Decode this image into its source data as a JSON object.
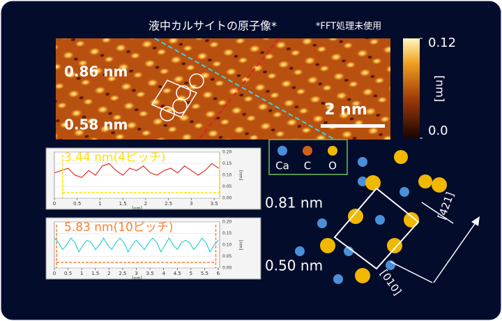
{
  "title": "液中カルサイトの原子像*",
  "note": "*FFT処理未使用",
  "image": {
    "labels": [
      "0.86 nm",
      "0.58 nm"
    ],
    "scale_bar": "2 nm",
    "colorbar": {
      "ylim": [
        0,
        0.12
      ],
      "yticks": [
        0.12,
        {
          "value": 0,
          "label": "0.0"
        }
      ],
      "unit": "[nm]"
    }
  },
  "profiles": [
    {
      "label": "3.44 nm(4ピッチ)",
      "label_color": "#ffe000",
      "color": "#e03030",
      "span_color": "#ffe000",
      "xlim": [
        0,
        3.62
      ],
      "ylim": [
        0,
        0.2
      ],
      "xticks": [
        0,
        0.5,
        1,
        1.5,
        2,
        2.5,
        3,
        3.5
      ],
      "yticks": [
        {
          "value": 0.2,
          "label": "0.20"
        },
        0.15,
        {
          "value": 0.1,
          "label": "0.10"
        },
        0.05,
        {
          "value": 0,
          "label": "0.00"
        }
      ],
      "xlabel": "[nm]",
      "ylabel": "[nm]",
      "span": [
        0.18,
        3.62
      ],
      "x": [
        0,
        0.15,
        0.3,
        0.45,
        0.6,
        0.75,
        0.9,
        1.05,
        1.2,
        1.35,
        1.5,
        1.65,
        1.8,
        1.95,
        2.1,
        2.25,
        2.4,
        2.55,
        2.7,
        2.85,
        3.0,
        3.15,
        3.3,
        3.45,
        3.6
      ],
      "values": [
        0.11,
        0.12,
        0.13,
        0.1,
        0.09,
        0.12,
        0.1,
        0.14,
        0.15,
        0.12,
        0.1,
        0.13,
        0.12,
        0.14,
        0.11,
        0.1,
        0.12,
        0.13,
        0.11,
        0.14,
        0.12,
        0.1,
        0.12,
        0.15,
        0.13
      ]
    },
    {
      "label": "5.83 nm(10ピッチ)",
      "label_color": "#ff8030",
      "color": "#30d0d0",
      "span_color": "#ff8030",
      "xlim": [
        0,
        6.05
      ],
      "ylim": [
        0,
        0.2
      ],
      "xticks": [
        0,
        0.5,
        1,
        1.5,
        2,
        2.5,
        3,
        3.5,
        4,
        4.5,
        5,
        5.5,
        6
      ],
      "yticks": [
        {
          "value": 0.2,
          "label": "0.20"
        },
        0.15,
        {
          "value": 0.1,
          "label": "0.10"
        },
        0.05,
        {
          "value": 0,
          "label": "0.00"
        }
      ],
      "xlabel": "[nm]",
      "ylabel": "[nm]",
      "span": [
        0.08,
        5.91
      ],
      "x": [
        0,
        0.15,
        0.3,
        0.45,
        0.6,
        0.75,
        0.9,
        1.05,
        1.2,
        1.35,
        1.5,
        1.65,
        1.8,
        1.95,
        2.1,
        2.25,
        2.4,
        2.55,
        2.7,
        2.85,
        3.0,
        3.15,
        3.3,
        3.45,
        3.6,
        3.75,
        3.9,
        4.05,
        4.2,
        4.35,
        4.5,
        4.65,
        4.8,
        4.95,
        5.1,
        5.25,
        5.4,
        5.55,
        5.7,
        5.85,
        6.0
      ],
      "values": [
        0.13,
        0.11,
        0.08,
        0.1,
        0.13,
        0.11,
        0.07,
        0.1,
        0.12,
        0.11,
        0.08,
        0.1,
        0.13,
        0.1,
        0.08,
        0.11,
        0.13,
        0.11,
        0.07,
        0.1,
        0.12,
        0.1,
        0.08,
        0.11,
        0.13,
        0.11,
        0.07,
        0.1,
        0.13,
        0.1,
        0.08,
        0.11,
        0.12,
        0.11,
        0.08,
        0.1,
        0.13,
        0.11,
        0.07,
        0.1,
        0.12
      ]
    }
  ],
  "legend": [
    {
      "name": "Ca",
      "color": "#4a90d9"
    },
    {
      "name": "C",
      "color": "#d06018"
    },
    {
      "name": "O",
      "color": "#f0b800"
    }
  ],
  "model": {
    "labels": [
      "0.81 nm",
      "0.50 nm"
    ],
    "directions": [
      "[421]",
      "[010]"
    ]
  }
}
